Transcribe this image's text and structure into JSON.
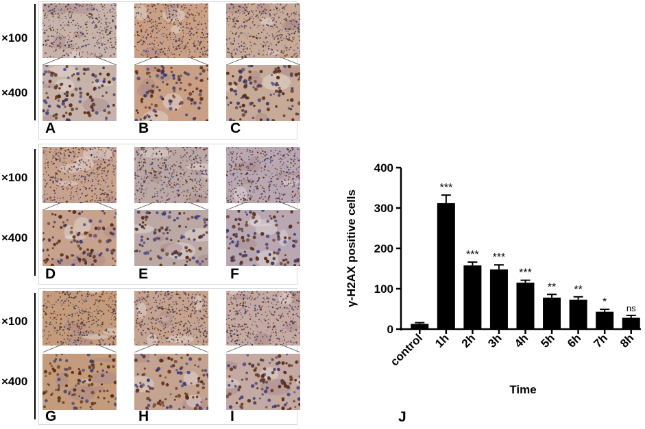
{
  "magnifications": {
    "low": "×100",
    "high": "×400"
  },
  "panel_letters": [
    "A",
    "B",
    "C",
    "D",
    "E",
    "F",
    "G",
    "H",
    "I"
  ],
  "chart_panel_letter": "J",
  "colors": {
    "bar": "#000000",
    "stain_bg": "#c9a98f",
    "nucleus_brown": "#5a2c12",
    "nucleus_blue": "#3b3f7a"
  },
  "chart_data": {
    "type": "bar",
    "title": "",
    "xlabel": "Time",
    "ylabel": "γ-H2AX positive cells",
    "ylim": [
      0,
      400
    ],
    "yticks": [
      0,
      100,
      200,
      300,
      400
    ],
    "categories": [
      "control",
      "1h",
      "2h",
      "3h",
      "4h",
      "5h",
      "6h",
      "7h",
      "8h"
    ],
    "values": [
      13,
      312,
      158,
      148,
      115,
      78,
      73,
      43,
      28
    ],
    "errors": [
      3,
      20,
      8,
      11,
      6,
      8,
      7,
      6,
      6
    ],
    "significance": [
      "",
      "***",
      "***",
      "***",
      "***",
      "**",
      "**",
      "*",
      "ns"
    ]
  }
}
